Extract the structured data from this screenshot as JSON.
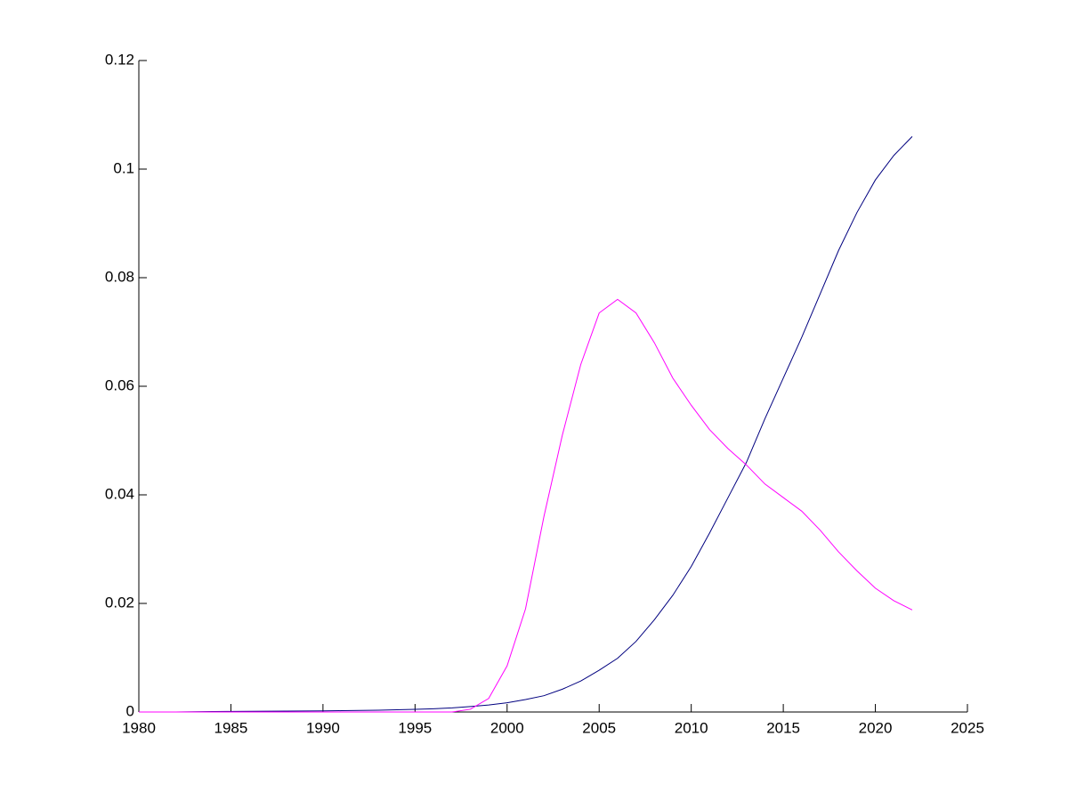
{
  "chart_data": {
    "type": "line",
    "x": [
      1980,
      1981,
      1982,
      1983,
      1984,
      1985,
      1986,
      1987,
      1988,
      1989,
      1990,
      1991,
      1992,
      1993,
      1994,
      1995,
      1996,
      1997,
      1998,
      1999,
      2000,
      2001,
      2002,
      2003,
      2004,
      2005,
      2006,
      2007,
      2008,
      2009,
      2010,
      2011,
      2012,
      2013,
      2014,
      2015,
      2016,
      2017,
      2018,
      2019,
      2020,
      2021,
      2022
    ],
    "series": [
      {
        "color": "#00007f",
        "values": [
          0,
          0,
          0,
          5e-05,
          8e-05,
          0.0001,
          0.00012,
          0.00014,
          0.00016,
          0.00018,
          0.0002,
          0.00024,
          0.00028,
          0.00033,
          0.0004,
          0.0005,
          0.0006,
          0.00075,
          0.001,
          0.0013,
          0.0017,
          0.0023,
          0.003,
          0.0042,
          0.0057,
          0.0077,
          0.0099,
          0.013,
          0.017,
          0.0215,
          0.0268,
          0.033,
          0.0395,
          0.046,
          0.054,
          0.0615,
          0.069,
          0.077,
          0.085,
          0.092,
          0.098,
          0.1025,
          0.106
        ]
      },
      {
        "color": "#ff00ff",
        "values": [
          0,
          0,
          0,
          0,
          0,
          0,
          0,
          0,
          0,
          0,
          0,
          0,
          0,
          0,
          0,
          0,
          0,
          0,
          0.0005,
          0.0025,
          0.0085,
          0.019,
          0.036,
          0.051,
          0.064,
          0.0735,
          0.076,
          0.0735,
          0.068,
          0.0615,
          0.0565,
          0.052,
          0.0485,
          0.0455,
          0.042,
          0.0395,
          0.037,
          0.0335,
          0.0295,
          0.026,
          0.0228,
          0.0205,
          0.0188
        ]
      }
    ],
    "xlim": [
      1980,
      2025
    ],
    "xticks": [
      1980,
      1985,
      1990,
      1995,
      2000,
      2005,
      2010,
      2015,
      2020,
      2025
    ],
    "ylim": [
      0,
      0.12
    ],
    "yticks": [
      0,
      0.02,
      0.04,
      0.06,
      0.08,
      0.1,
      0.12
    ]
  }
}
